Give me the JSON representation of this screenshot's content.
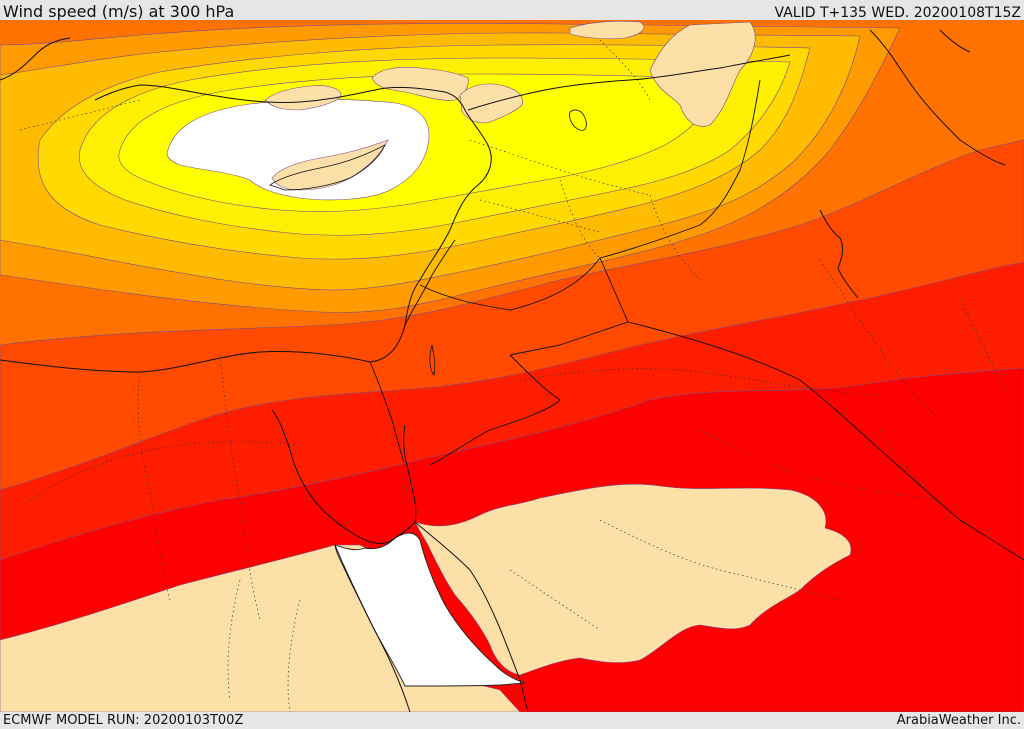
{
  "header": {
    "title": "Wind speed (m/s) at 300 hPa",
    "valid": "VALID T+135 WED. 20200108T15Z"
  },
  "footer": {
    "model_run": "ECMWF MODEL RUN: 20200103T00Z",
    "credit": "ArabiaWeather Inc."
  },
  "palette": {
    "calm": "#fddfa8",
    "max": "#ffffff",
    "yellow": "#ffff00",
    "light_gold": "#ffef00",
    "gold": "#ffd900",
    "amber": "#ffbb00",
    "orange": "#ff9a00",
    "deep_orange": "#ff7200",
    "red_orange": "#ff4a00",
    "red": "#ff1d00",
    "pure_red": "#ff0000"
  }
}
